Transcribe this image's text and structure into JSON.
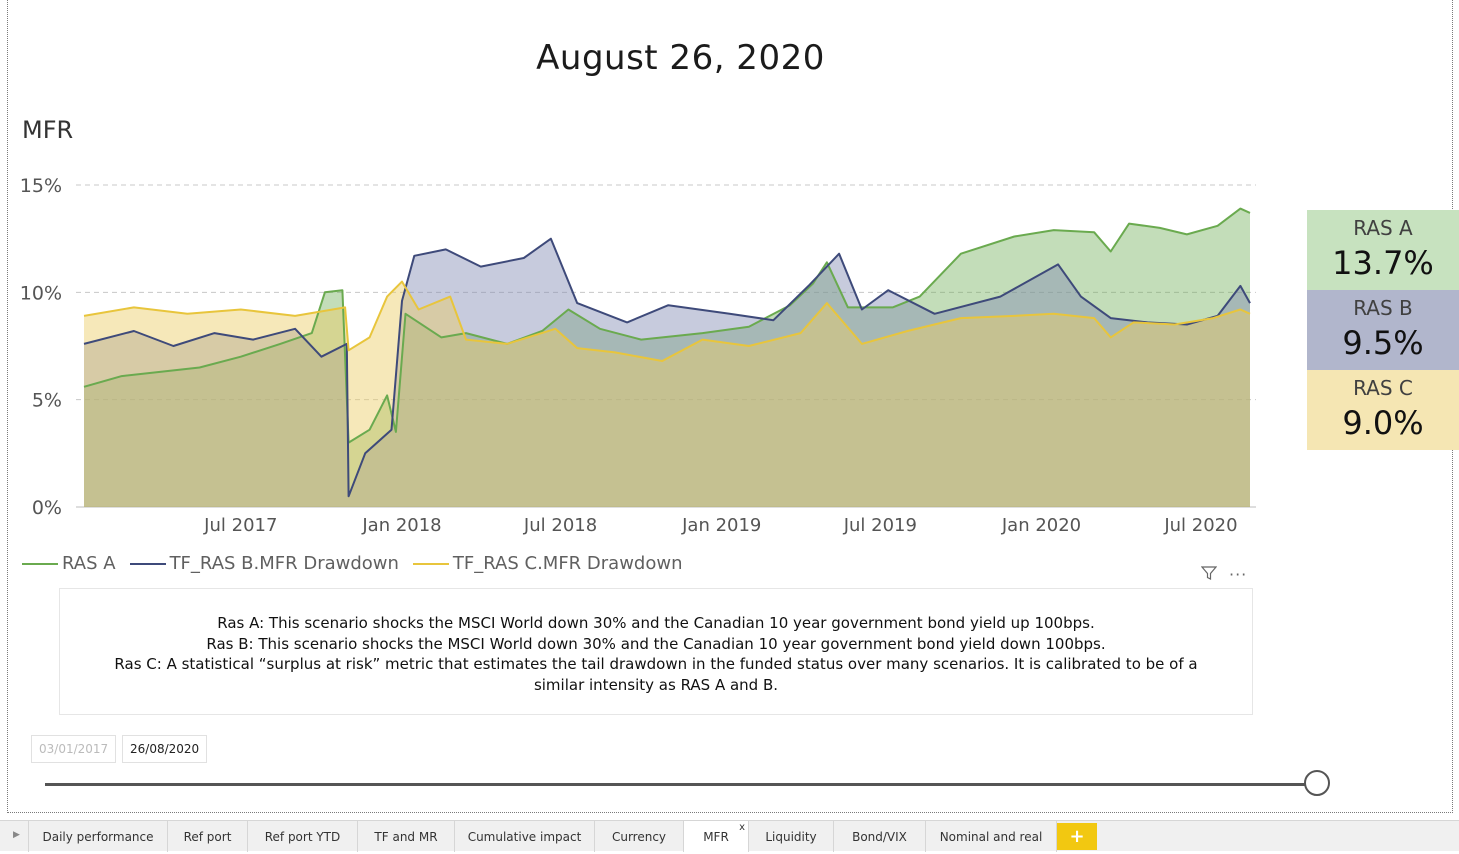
{
  "report_title": "August 26, 2020",
  "chart_data": {
    "type": "area",
    "title": "MFR",
    "y_ticks": [
      "15%",
      "10%",
      "5%",
      "0%"
    ],
    "ylim": [
      0,
      15
    ],
    "x_ticks": [
      "Jul 2017",
      "Jan 2018",
      "Jul 2018",
      "Jan 2019",
      "Jul 2019",
      "Jan 2020",
      "Jul 2020"
    ],
    "x_tick_dates": [
      "2017-07-01",
      "2018-01-01",
      "2018-07-01",
      "2019-01-01",
      "2019-07-01",
      "2020-01-01",
      "2020-07-01"
    ],
    "x_range": [
      "2017-01-03",
      "2020-08-26"
    ],
    "grid": true,
    "legend_position": "bottom-left",
    "series": [
      {
        "name": "RAS A",
        "color": "#6aaa4f",
        "fill": "rgba(106,170,79,0.40)",
        "points": [
          [
            "2017-01-03",
            5.6
          ],
          [
            "2017-02-15",
            6.1
          ],
          [
            "2017-04-01",
            6.3
          ],
          [
            "2017-05-15",
            6.5
          ],
          [
            "2017-07-01",
            7.0
          ],
          [
            "2017-08-15",
            7.6
          ],
          [
            "2017-09-20",
            8.1
          ],
          [
            "2017-10-05",
            10.0
          ],
          [
            "2017-10-25",
            10.1
          ],
          [
            "2017-11-01",
            3.0
          ],
          [
            "2017-11-25",
            3.6
          ],
          [
            "2017-12-15",
            5.2
          ],
          [
            "2017-12-25",
            3.5
          ],
          [
            "2018-01-05",
            9.0
          ],
          [
            "2018-02-15",
            7.9
          ],
          [
            "2018-03-15",
            8.1
          ],
          [
            "2018-05-01",
            7.6
          ],
          [
            "2018-06-10",
            8.2
          ],
          [
            "2018-07-10",
            9.2
          ],
          [
            "2018-08-15",
            8.3
          ],
          [
            "2018-10-01",
            7.8
          ],
          [
            "2018-12-10",
            8.1
          ],
          [
            "2019-02-01",
            8.4
          ],
          [
            "2019-03-20",
            9.4
          ],
          [
            "2019-04-15",
            10.4
          ],
          [
            "2019-05-01",
            11.4
          ],
          [
            "2019-05-25",
            9.3
          ],
          [
            "2019-07-15",
            9.3
          ],
          [
            "2019-08-15",
            9.8
          ],
          [
            "2019-10-01",
            11.8
          ],
          [
            "2019-12-01",
            12.6
          ],
          [
            "2020-01-15",
            12.9
          ],
          [
            "2020-03-01",
            12.8
          ],
          [
            "2020-03-20",
            11.9
          ],
          [
            "2020-04-10",
            13.2
          ],
          [
            "2020-05-15",
            13.0
          ],
          [
            "2020-06-15",
            12.7
          ],
          [
            "2020-07-20",
            13.1
          ],
          [
            "2020-08-15",
            13.9
          ],
          [
            "2020-08-26",
            13.7
          ]
        ]
      },
      {
        "name": "TF_RAS B.MFR Drawdown",
        "color": "#3e4a7a",
        "fill": "rgba(130,140,180,0.45)",
        "points": [
          [
            "2017-01-03",
            7.6
          ],
          [
            "2017-03-01",
            8.2
          ],
          [
            "2017-04-15",
            7.5
          ],
          [
            "2017-06-01",
            8.1
          ],
          [
            "2017-07-15",
            7.8
          ],
          [
            "2017-09-01",
            8.3
          ],
          [
            "2017-10-01",
            7.0
          ],
          [
            "2017-10-30",
            7.6
          ],
          [
            "2017-11-01",
            0.5
          ],
          [
            "2017-11-20",
            2.5
          ],
          [
            "2017-12-20",
            3.6
          ],
          [
            "2018-01-01",
            9.6
          ],
          [
            "2018-01-15",
            11.7
          ],
          [
            "2018-02-20",
            12.0
          ],
          [
            "2018-04-01",
            11.2
          ],
          [
            "2018-05-20",
            11.6
          ],
          [
            "2018-06-20",
            12.5
          ],
          [
            "2018-07-20",
            9.5
          ],
          [
            "2018-09-15",
            8.6
          ],
          [
            "2018-11-01",
            9.4
          ],
          [
            "2019-01-10",
            9.0
          ],
          [
            "2019-03-01",
            8.7
          ],
          [
            "2019-04-10",
            10.3
          ],
          [
            "2019-05-15",
            11.8
          ],
          [
            "2019-06-10",
            9.2
          ],
          [
            "2019-07-10",
            10.1
          ],
          [
            "2019-09-01",
            9.0
          ],
          [
            "2019-11-15",
            9.8
          ],
          [
            "2019-12-20",
            10.6
          ],
          [
            "2020-01-20",
            11.3
          ],
          [
            "2020-02-15",
            9.8
          ],
          [
            "2020-03-20",
            8.8
          ],
          [
            "2020-05-01",
            8.6
          ],
          [
            "2020-06-15",
            8.5
          ],
          [
            "2020-07-20",
            8.9
          ],
          [
            "2020-08-15",
            10.3
          ],
          [
            "2020-08-26",
            9.5
          ]
        ]
      },
      {
        "name": "TF_RAS C.MFR Drawdown",
        "color": "#e8c53c",
        "fill": "rgba(236,205,100,0.45)",
        "points": [
          [
            "2017-01-03",
            8.9
          ],
          [
            "2017-03-01",
            9.3
          ],
          [
            "2017-05-01",
            9.0
          ],
          [
            "2017-07-01",
            9.2
          ],
          [
            "2017-09-01",
            8.9
          ],
          [
            "2017-10-28",
            9.3
          ],
          [
            "2017-11-01",
            7.3
          ],
          [
            "2017-11-25",
            7.9
          ],
          [
            "2017-12-15",
            9.8
          ],
          [
            "2018-01-01",
            10.5
          ],
          [
            "2018-01-20",
            9.2
          ],
          [
            "2018-02-25",
            9.8
          ],
          [
            "2018-03-15",
            7.8
          ],
          [
            "2018-05-01",
            7.6
          ],
          [
            "2018-06-25",
            8.3
          ],
          [
            "2018-07-20",
            7.4
          ],
          [
            "2018-09-01",
            7.2
          ],
          [
            "2018-10-25",
            6.8
          ],
          [
            "2018-12-10",
            7.8
          ],
          [
            "2019-02-01",
            7.5
          ],
          [
            "2019-04-01",
            8.1
          ],
          [
            "2019-05-01",
            9.5
          ],
          [
            "2019-06-10",
            7.6
          ],
          [
            "2019-08-01",
            8.2
          ],
          [
            "2019-10-01",
            8.8
          ],
          [
            "2019-12-01",
            8.9
          ],
          [
            "2020-01-15",
            9.0
          ],
          [
            "2020-03-01",
            8.8
          ],
          [
            "2020-03-20",
            7.9
          ],
          [
            "2020-04-15",
            8.6
          ],
          [
            "2020-06-01",
            8.5
          ],
          [
            "2020-07-15",
            8.8
          ],
          [
            "2020-08-15",
            9.2
          ],
          [
            "2020-08-26",
            9.0
          ]
        ]
      }
    ]
  },
  "kpi_cards": [
    {
      "label": "RAS A",
      "value": "13.7%",
      "bg": "#c7e2bf"
    },
    {
      "label": "RAS B",
      "value": "9.5%",
      "bg": "#b1b6cc"
    },
    {
      "label": "RAS C",
      "value": "9.0%",
      "bg": "#f5e6b3"
    }
  ],
  "description": {
    "line1": "Ras A: This scenario shocks the MSCI World down 30% and the Canadian 10 year government bond yield up 100bps.",
    "line2": "Ras B: This scenario shocks the MSCI World down 30% and the Canadian 10 year government bond yield down 100bps.",
    "line3": "Ras C: A statistical “surplus at risk” metric that estimates the tail drawdown in the funded status over many scenarios. It is calibrated to be of a similar intensity as RAS A and B."
  },
  "visual_header_icons": {
    "filter": "filter-icon",
    "more": "more-options-icon"
  },
  "date_slicer": {
    "start": "03/01/2017",
    "end": "26/08/2020",
    "position": 1.0
  },
  "tabs": {
    "items": [
      {
        "label": "Daily performance",
        "active": false
      },
      {
        "label": "Ref port",
        "active": false
      },
      {
        "label": "Ref port YTD",
        "active": false
      },
      {
        "label": "TF and MR",
        "active": false
      },
      {
        "label": "Cumulative impact",
        "active": false
      },
      {
        "label": "Currency",
        "active": false
      },
      {
        "label": "MFR",
        "active": true,
        "close": "x"
      },
      {
        "label": "Liquidity",
        "active": false
      },
      {
        "label": "Bond/VIX",
        "active": false
      },
      {
        "label": "Nominal and real",
        "active": false
      }
    ],
    "add_label": "+"
  }
}
